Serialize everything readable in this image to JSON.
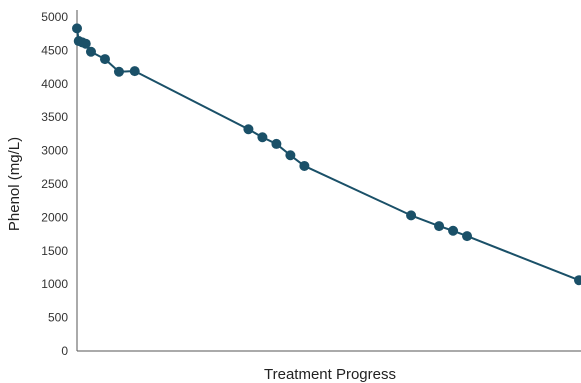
{
  "chart_data": {
    "type": "line",
    "title": "",
    "xlabel": "Treatment Progress",
    "ylabel": "Phenol (mg/L)",
    "ylim": [
      0,
      5000
    ],
    "yticks": [
      "0",
      "500",
      "1000",
      "1500",
      "2000",
      "2500",
      "3000",
      "3500",
      "4000",
      "4500",
      "5000"
    ],
    "x_ticks_shown": false,
    "grid": false,
    "legend": "none",
    "series": [
      {
        "color": "#1a5068",
        "points": [
          {
            "x": 0,
            "y": 4830
          },
          {
            "x": 1,
            "y": 4640
          },
          {
            "x": 3,
            "y": 4620
          },
          {
            "x": 5,
            "y": 4600
          },
          {
            "x": 8,
            "y": 4480
          },
          {
            "x": 16,
            "y": 4370
          },
          {
            "x": 24,
            "y": 4180
          },
          {
            "x": 33,
            "y": 4190
          },
          {
            "x": 98,
            "y": 3320
          },
          {
            "x": 106,
            "y": 3200
          },
          {
            "x": 114,
            "y": 3100
          },
          {
            "x": 122,
            "y": 2930
          },
          {
            "x": 130,
            "y": 2770
          },
          {
            "x": 191,
            "y": 2030
          },
          {
            "x": 207,
            "y": 1870
          },
          {
            "x": 215,
            "y": 1800
          },
          {
            "x": 223,
            "y": 1720
          },
          {
            "x": 287,
            "y": 1060
          }
        ]
      }
    ],
    "xlim": [
      0,
      287
    ]
  }
}
